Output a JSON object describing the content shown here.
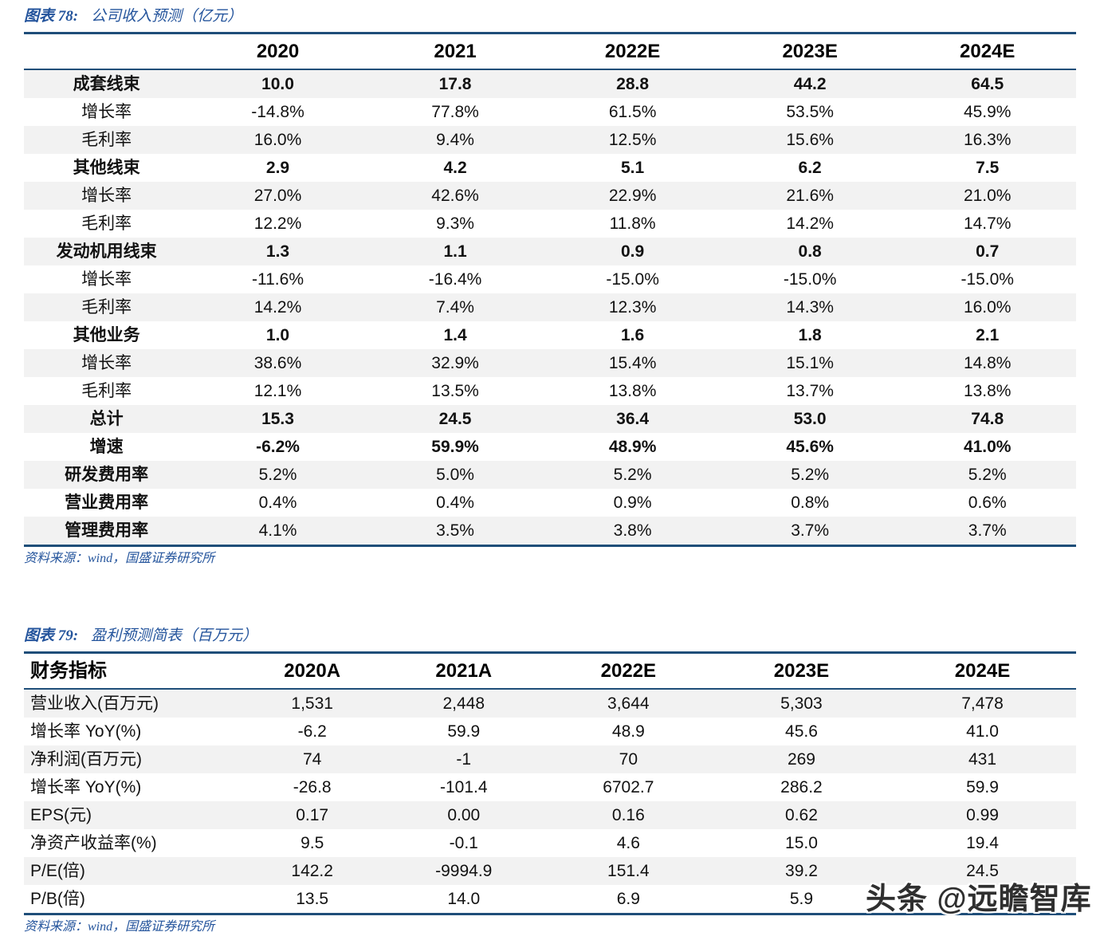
{
  "colors": {
    "accent_blue": "#1f4e79",
    "caption_blue": "#24549c",
    "row_stripe_gray": "#f2f2f2",
    "watermark_gray": "#2f2f2f"
  },
  "table1": {
    "caption_prefix": "图表 78:",
    "caption_title": "公司收入预测（亿元）",
    "columns": [
      "",
      "2020",
      "2021",
      "2022E",
      "2023E",
      "2024E"
    ],
    "rows": [
      {
        "label": "成套线束",
        "bold": true,
        "values": [
          "10.0",
          "17.8",
          "28.8",
          "44.2",
          "64.5"
        ]
      },
      {
        "label": "增长率",
        "values": [
          "-14.8%",
          "77.8%",
          "61.5%",
          "53.5%",
          "45.9%"
        ]
      },
      {
        "label": "毛利率",
        "values": [
          "16.0%",
          "9.4%",
          "12.5%",
          "15.6%",
          "16.3%"
        ]
      },
      {
        "label": "其他线束",
        "bold": true,
        "values": [
          "2.9",
          "4.2",
          "5.1",
          "6.2",
          "7.5"
        ]
      },
      {
        "label": "增长率",
        "values": [
          "27.0%",
          "42.6%",
          "22.9%",
          "21.6%",
          "21.0%"
        ]
      },
      {
        "label": "毛利率",
        "values": [
          "12.2%",
          "9.3%",
          "11.8%",
          "14.2%",
          "14.7%"
        ]
      },
      {
        "label": "发动机用线束",
        "bold": true,
        "values": [
          "1.3",
          "1.1",
          "0.9",
          "0.8",
          "0.7"
        ]
      },
      {
        "label": "增长率",
        "values": [
          "-11.6%",
          "-16.4%",
          "-15.0%",
          "-15.0%",
          "-15.0%"
        ]
      },
      {
        "label": "毛利率",
        "values": [
          "14.2%",
          "7.4%",
          "12.3%",
          "14.3%",
          "16.0%"
        ]
      },
      {
        "label": "其他业务",
        "bold": true,
        "values": [
          "1.0",
          "1.4",
          "1.6",
          "1.8",
          "2.1"
        ]
      },
      {
        "label": "增长率",
        "values": [
          "38.6%",
          "32.9%",
          "15.4%",
          "15.1%",
          "14.8%"
        ]
      },
      {
        "label": "毛利率",
        "values": [
          "12.1%",
          "13.5%",
          "13.8%",
          "13.7%",
          "13.8%"
        ]
      },
      {
        "label": "总计",
        "bold": true,
        "values": [
          "15.3",
          "24.5",
          "36.4",
          "53.0",
          "74.8"
        ]
      },
      {
        "label": "增速",
        "bold": true,
        "values": [
          "-6.2%",
          "59.9%",
          "48.9%",
          "45.6%",
          "41.0%"
        ]
      },
      {
        "label": "研发费用率",
        "bold_label": true,
        "values": [
          "5.2%",
          "5.0%",
          "5.2%",
          "5.2%",
          "5.2%"
        ]
      },
      {
        "label": "营业费用率",
        "bold_label": true,
        "values": [
          "0.4%",
          "0.4%",
          "0.9%",
          "0.8%",
          "0.6%"
        ]
      },
      {
        "label": "管理费用率",
        "bold_label": true,
        "values": [
          "4.1%",
          "3.5%",
          "3.8%",
          "3.7%",
          "3.7%"
        ]
      }
    ],
    "source": "资料来源：wind，国盛证券研究所"
  },
  "table2": {
    "caption_prefix": "图表 79:",
    "caption_title": "盈利预测简表（百万元）",
    "columns": [
      "财务指标",
      "2020A",
      "2021A",
      "2022E",
      "2023E",
      "2024E"
    ],
    "rows": [
      {
        "label": "营业收入(百万元)",
        "values": [
          "1,531",
          "2,448",
          "3,644",
          "5,303",
          "7,478"
        ]
      },
      {
        "label": "增长率 YoY(%)",
        "values": [
          "-6.2",
          "59.9",
          "48.9",
          "45.6",
          "41.0"
        ]
      },
      {
        "label": "净利润(百万元)",
        "values": [
          "74",
          "-1",
          "70",
          "269",
          "431"
        ]
      },
      {
        "label": "增长率 YoY(%)",
        "values": [
          "-26.8",
          "-101.4",
          "6702.7",
          "286.2",
          "59.9"
        ]
      },
      {
        "label": "EPS(元)",
        "values": [
          "0.17",
          "0.00",
          "0.16",
          "0.62",
          "0.99"
        ]
      },
      {
        "label": "净资产收益率(%)",
        "values": [
          "9.5",
          "-0.1",
          "4.6",
          "15.0",
          "19.4"
        ]
      },
      {
        "label": "P/E(倍)",
        "values": [
          "142.2",
          "-9994.9",
          "151.4",
          "39.2",
          "24.5"
        ]
      },
      {
        "label": "P/B(倍)",
        "values": [
          "13.5",
          "14.0",
          "6.9",
          "5.9",
          ""
        ]
      }
    ],
    "source": "资料来源：wind，国盛证券研究所"
  },
  "watermark": "头条 @远瞻智库"
}
